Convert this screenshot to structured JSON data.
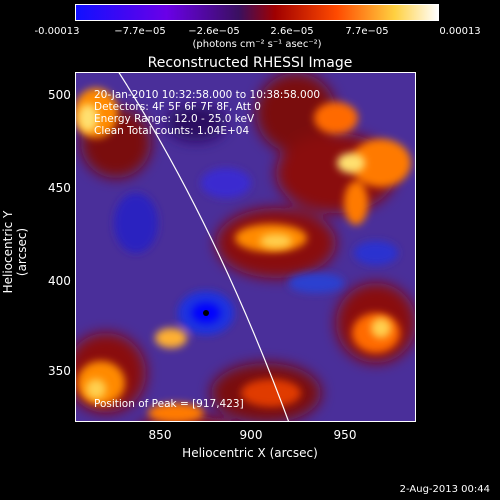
{
  "colorbar": {
    "ticks": [
      "-0.00013",
      "−7.7e−05",
      "−2.6e−05",
      "2.6e−05",
      "7.7e−05",
      "0.00013"
    ],
    "unit": "(photons cm⁻² s⁻¹ asec⁻²)",
    "colors": [
      "#0000ff",
      "#7a00e0",
      "#4a1a7a",
      "#b01010",
      "#ff7a00",
      "#ffffff"
    ]
  },
  "title": "Reconstructed RHESSI Image",
  "info": {
    "time": "20-Jan-2010 10:32:58.000 to 10:38:58.000",
    "detectors": "Detectors: 4F 5F 6F 7F 8F, Att 0",
    "energy": "Energy Range: 12.0 - 25.0 keV",
    "clean": "Clean    Total counts: 1.04E+04",
    "peak": "Position of Peak = [917,423]"
  },
  "axes": {
    "ylabel": "Heliocentric Y (arcsec)",
    "xlabel": "Heliocentric X (arcsec)",
    "yticks": [
      "500",
      "450",
      "400",
      "350"
    ],
    "xticks": [
      "850",
      "900",
      "950"
    ]
  },
  "datestamp": "2-Aug-2013 00:44"
}
